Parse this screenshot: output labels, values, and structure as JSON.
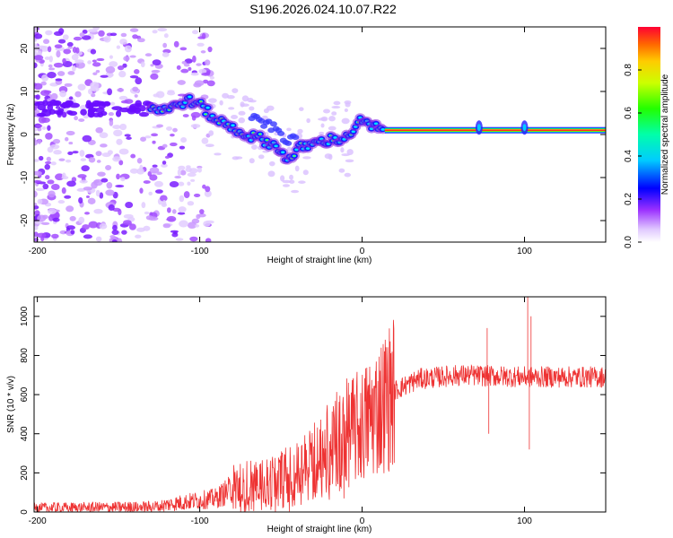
{
  "title": "S196.2026.024.10.07.R22",
  "chart_data": [
    {
      "type": "heatmap",
      "xlabel": "Height of straight line (km)",
      "ylabel": "Frequency (Hz)",
      "xlim": [
        -202,
        150
      ],
      "ylim": [
        -25,
        25
      ],
      "xticks": [
        -200,
        -100,
        0,
        100
      ],
      "yticks": [
        -20,
        -10,
        0,
        10,
        20
      ],
      "colorbar": {
        "label": "Normalized spectral amplitude",
        "range": [
          0,
          1
        ],
        "ticks": [
          0.0,
          0.2,
          0.4,
          0.6,
          0.8
        ],
        "tick_labels": [
          "0.0",
          "0.2",
          "0.4",
          "0.6",
          "0.8"
        ]
      },
      "ridge": [
        {
          "x": -130,
          "y": 6
        },
        {
          "x": -118,
          "y": 6
        },
        {
          "x": -108,
          "y": 8
        },
        {
          "x": -100,
          "y": 7
        },
        {
          "x": -92,
          "y": 4
        },
        {
          "x": -82,
          "y": 2
        },
        {
          "x": -72,
          "y": 0
        },
        {
          "x": -62,
          "y": -1
        },
        {
          "x": -52,
          "y": -3
        },
        {
          "x": -45,
          "y": -6
        },
        {
          "x": -38,
          "y": -3
        },
        {
          "x": -28,
          "y": -2
        },
        {
          "x": -18,
          "y": -1
        },
        {
          "x": -10,
          "y": -1
        },
        {
          "x": -2,
          "y": 3
        },
        {
          "x": 6,
          "y": 2
        },
        {
          "x": 12,
          "y": 1
        },
        {
          "x": 150,
          "y": 1
        }
      ],
      "carrier_line": {
        "x_start": 14,
        "x_end": 150,
        "y": 1
      }
    },
    {
      "type": "line",
      "xlabel": "Height of straight line (km)",
      "ylabel": "SNR (10 * v/v)",
      "xlim": [
        -202,
        150
      ],
      "ylim": [
        0,
        1100
      ],
      "xticks": [
        -200,
        -100,
        0,
        100
      ],
      "yticks": [
        0,
        200,
        400,
        600,
        800,
        1000
      ],
      "series": [
        {
          "name": "SNR",
          "color": "#ee3333",
          "envelope": [
            {
              "x": -202,
              "y": 20
            },
            {
              "x": -130,
              "y": 25
            },
            {
              "x": -110,
              "y": 50
            },
            {
              "x": -90,
              "y": 70
            },
            {
              "x": -78,
              "y": 130
            },
            {
              "x": -60,
              "y": 140
            },
            {
              "x": -40,
              "y": 200
            },
            {
              "x": -25,
              "y": 290
            },
            {
              "x": -15,
              "y": 380
            },
            {
              "x": 0,
              "y": 440
            },
            {
              "x": 10,
              "y": 530
            },
            {
              "x": 20,
              "y": 620
            },
            {
              "x": 35,
              "y": 680
            },
            {
              "x": 60,
              "y": 700
            },
            {
              "x": 100,
              "y": 690
            },
            {
              "x": 150,
              "y": 690
            }
          ],
          "spikes": [
            {
              "x": 77,
              "y": 940
            },
            {
              "x": 78,
              "y": 400
            },
            {
              "x": 102,
              "y": 1100
            },
            {
              "x": 103,
              "y": 320
            },
            {
              "x": 104,
              "y": 1000
            }
          ]
        }
      ]
    }
  ]
}
